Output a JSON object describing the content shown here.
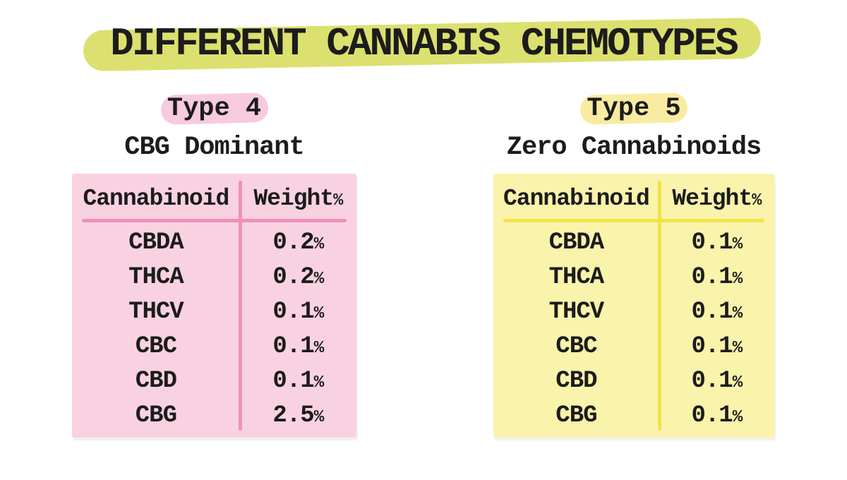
{
  "title": {
    "text": "DIFFERENT CANNABIS CHEMOTYPES",
    "highlight_color": "#dce06f"
  },
  "chart_data": [
    {
      "type": "table",
      "title": "Type 4",
      "subtitle": "CBG Dominant",
      "columns": [
        "Cannabinoid",
        "Weight%"
      ],
      "rows": [
        [
          "CBDA",
          "0.2%"
        ],
        [
          "THCA",
          "0.2%"
        ],
        [
          "THCV",
          "0.1%"
        ],
        [
          "CBC",
          "0.1%"
        ],
        [
          "CBD",
          "0.1%"
        ],
        [
          "CBG",
          "2.5%"
        ]
      ],
      "colors": {
        "table_bg": "#f9d2e2",
        "divider": "#f08fba",
        "label_highlight": "#f7cbdd"
      }
    },
    {
      "type": "table",
      "title": "Type 5",
      "subtitle": "Zero Cannabinoids",
      "columns": [
        "Cannabinoid",
        "Weight%"
      ],
      "rows": [
        [
          "CBDA",
          "0.1%"
        ],
        [
          "THCA",
          "0.1%"
        ],
        [
          "THCV",
          "0.1%"
        ],
        [
          "CBC",
          "0.1%"
        ],
        [
          "CBD",
          "0.1%"
        ],
        [
          "CBG",
          "0.1%"
        ]
      ],
      "colors": {
        "table_bg": "#faf3ab",
        "divider": "#f2e24a",
        "label_highlight": "#f9eca1"
      }
    }
  ]
}
